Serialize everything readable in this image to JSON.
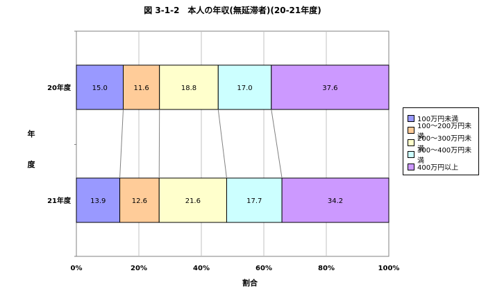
{
  "chart_data": {
    "type": "bar",
    "orientation": "horizontal-stacked-percent",
    "title": "図 3-1-2　本人の年収(無延滞者)(20-21年度)",
    "xlabel": "割合",
    "ylabel": "年度",
    "xlim": [
      0,
      100
    ],
    "x_ticks": [
      "0%",
      "20%",
      "40%",
      "60%",
      "80%",
      "100%"
    ],
    "categories": [
      "20年度",
      "21年度"
    ],
    "grid": "vertical",
    "legend_position": "right",
    "series_lines": true,
    "series": [
      {
        "name": "100万円未満",
        "color": "#9999ff",
        "values": [
          15.0,
          13.9
        ]
      },
      {
        "name": "100～200万円未満",
        "color": "#ffcc99",
        "values": [
          11.6,
          12.6
        ]
      },
      {
        "name": "200～300万円未満",
        "color": "#ffffcc",
        "values": [
          18.8,
          21.6
        ]
      },
      {
        "name": "300～400万円未満",
        "color": "#ccffff",
        "values": [
          17.0,
          17.7
        ]
      },
      {
        "name": "400万円以上",
        "color": "#cc99ff",
        "values": [
          37.6,
          34.2
        ]
      }
    ]
  }
}
